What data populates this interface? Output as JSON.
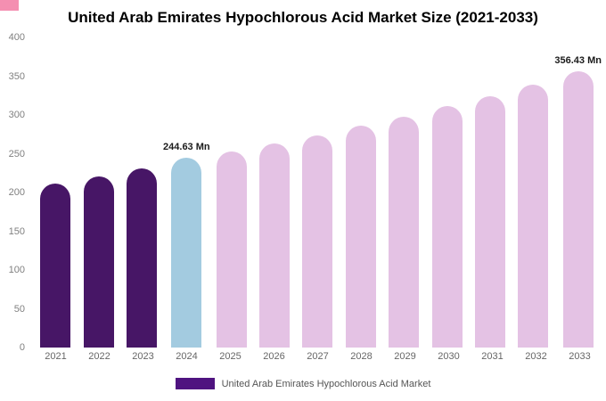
{
  "title": "United Arab Emirates Hypochlorous Acid Market Size (2021-2033)",
  "legend": {
    "label": "United Arab Emirates Hypochlorous Acid Market",
    "swatch_color": "#4F1380"
  },
  "colors": {
    "dark_purple": "#471666",
    "light_blue": "#a3cbe0",
    "light_pink": "#e4c2e4",
    "corner_accent": "#f48fb1",
    "title_text": "#000000",
    "axis_text": "#808080",
    "value_label_text": "#1a1a1a"
  },
  "chart_data": {
    "type": "bar",
    "title": "United Arab Emirates Hypochlorous Acid Market Size (2021-2033)",
    "xlabel": "",
    "ylabel": "",
    "ylim": [
      0,
      400
    ],
    "yticks": [
      0,
      50,
      100,
      150,
      200,
      250,
      300,
      350,
      400
    ],
    "grid": false,
    "legend_position": "bottom",
    "categories": [
      "2021",
      "2022",
      "2023",
      "2024",
      "2025",
      "2026",
      "2027",
      "2028",
      "2029",
      "2030",
      "2031",
      "2032",
      "2033"
    ],
    "values": [
      211,
      221,
      231,
      244.63,
      253,
      263,
      274,
      286,
      298,
      311,
      324,
      339,
      356.43
    ],
    "value_labels": [
      "",
      "",
      "",
      "244.63 Mn",
      "",
      "",
      "",
      "",
      "",
      "",
      "",
      "",
      "356.43 Mn"
    ],
    "bar_colors": [
      "#471666",
      "#471666",
      "#471666",
      "#a3cbe0",
      "#e4c2e4",
      "#e4c2e4",
      "#e4c2e4",
      "#e4c2e4",
      "#e4c2e4",
      "#e4c2e4",
      "#e4c2e4",
      "#e4c2e4",
      "#e4c2e4"
    ]
  }
}
